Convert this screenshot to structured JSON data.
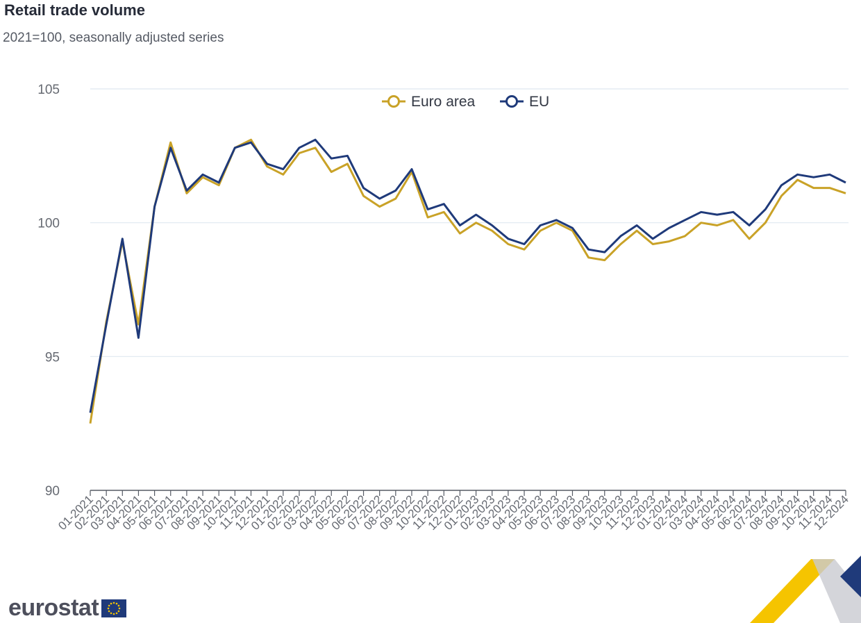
{
  "header": {
    "title": "Retail trade volume",
    "subtitle": "2021=100, seasonally adjusted series"
  },
  "footer": {
    "brand": "eurostat"
  },
  "chart_data": {
    "type": "line",
    "title": "Retail trade volume",
    "subtitle": "2021=100, seasonally adjusted series",
    "xlabel": "",
    "ylabel": "",
    "ylim": [
      90,
      105
    ],
    "yticks": [
      90,
      95,
      100,
      105
    ],
    "grid": true,
    "legend_position": "top-center",
    "categories": [
      "01-2021",
      "02-2021",
      "03-2021",
      "04-2021",
      "05-2021",
      "06-2021",
      "07-2021",
      "08-2021",
      "09-2021",
      "10-2021",
      "11-2021",
      "12-2021",
      "01-2022",
      "02-2022",
      "03-2022",
      "04-2022",
      "05-2022",
      "06-2022",
      "07-2022",
      "08-2022",
      "09-2022",
      "10-2022",
      "11-2022",
      "12-2022",
      "01-2023",
      "02-2023",
      "03-2023",
      "04-2023",
      "05-2023",
      "06-2023",
      "07-2023",
      "08-2023",
      "09-2023",
      "10-2023",
      "11-2023",
      "12-2023",
      "01-2024",
      "02-2024",
      "03-2024",
      "04-2024",
      "05-2024",
      "06-2024",
      "07-2024",
      "08-2024",
      "09-2024",
      "10-2024",
      "11-2024",
      "12-2024"
    ],
    "series": [
      {
        "name": "Euro area",
        "color": "#c9a227",
        "values": [
          92.5,
          96.3,
          99.3,
          96.2,
          100.6,
          103.0,
          101.1,
          101.7,
          101.4,
          102.8,
          103.1,
          102.1,
          101.8,
          102.6,
          102.8,
          101.9,
          102.2,
          101.0,
          100.6,
          100.9,
          101.9,
          100.2,
          100.4,
          99.6,
          100.0,
          99.7,
          99.2,
          99.0,
          99.7,
          100.0,
          99.7,
          98.7,
          98.6,
          99.2,
          99.7,
          99.2,
          99.3,
          99.5,
          100.0,
          99.9,
          100.1,
          99.4,
          100.0,
          101.0,
          101.6,
          101.3,
          101.3,
          101.1
        ]
      },
      {
        "name": "EU",
        "color": "#1f3a7a",
        "values": [
          92.9,
          96.2,
          99.4,
          95.7,
          100.6,
          102.8,
          101.2,
          101.8,
          101.5,
          102.8,
          103.0,
          102.2,
          102.0,
          102.8,
          103.1,
          102.4,
          102.5,
          101.3,
          100.9,
          101.2,
          102.0,
          100.5,
          100.7,
          99.9,
          100.3,
          99.9,
          99.4,
          99.2,
          99.9,
          100.1,
          99.8,
          99.0,
          98.9,
          99.5,
          99.9,
          99.4,
          99.8,
          100.1,
          100.4,
          100.3,
          100.4,
          99.9,
          100.5,
          101.4,
          101.8,
          101.7,
          101.8,
          101.5
        ]
      }
    ]
  }
}
